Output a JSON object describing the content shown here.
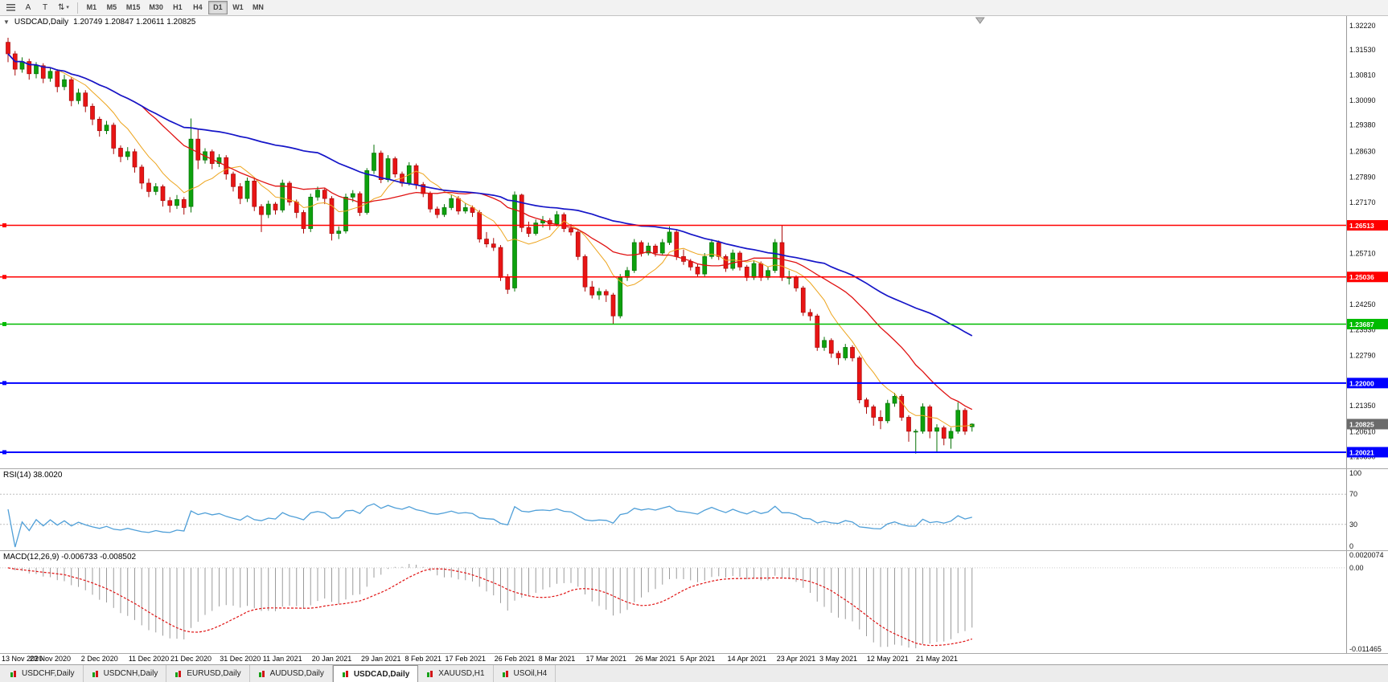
{
  "toolbar": {
    "tool_a": "A",
    "tool_t": "T",
    "icons": {
      "scale": "⇅",
      "caret": "▾",
      "collapse": "▼"
    },
    "timeframes": [
      "M1",
      "M5",
      "M15",
      "M30",
      "H1",
      "H4",
      "D1",
      "W1",
      "MN"
    ],
    "active_timeframe": "D1"
  },
  "main_chart": {
    "title": "USDCAD,Daily",
    "ohlc": "1.20749 1.20847 1.20611 1.20825"
  },
  "rsi_panel": {
    "label": "RSI(14) 38.0020"
  },
  "macd_panel": {
    "label": "MACD(12,26,9) -0.006733 -0.008502"
  },
  "bottom_tabs": [
    {
      "label": "USDCHF,Daily",
      "active": false
    },
    {
      "label": "USDCNH,Daily",
      "active": false
    },
    {
      "label": "EURUSD,Daily",
      "active": false
    },
    {
      "label": "AUDUSD,Daily",
      "active": false
    },
    {
      "label": "USDCAD,Daily",
      "active": true
    },
    {
      "label": "XAUUSD,H1",
      "active": false
    },
    {
      "label": "USOil,H4",
      "active": false
    }
  ],
  "chart_data": {
    "type": "candlestick",
    "symbol": "USDCAD",
    "timeframe": "Daily",
    "ohlc_current": {
      "open": 1.20749,
      "high": 1.20847,
      "low": 1.20611,
      "close": 1.20825
    },
    "current_price": 1.20825,
    "current_price_label": "1.20825",
    "price_axis_range": [
      1.1956,
      1.325
    ],
    "price_axis_ticks": [
      "1.32220",
      "1.31530",
      "1.30810",
      "1.30090",
      "1.29380",
      "1.28630",
      "1.27890",
      "1.27170",
      "1.25710",
      "1.24250",
      "1.23530",
      "1.22790",
      "1.21350",
      "1.20610",
      "1.19890"
    ],
    "horizontal_lines": [
      {
        "price": 1.26513,
        "label": "1.26513",
        "color": "#ff0000",
        "lw": 1.5
      },
      {
        "price": 1.25036,
        "label": "1.25036",
        "color": "#ff0000",
        "lw": 1.5
      },
      {
        "price": 1.23687,
        "label": "1.23687",
        "color": "#00bb00",
        "lw": 1.5
      },
      {
        "price": 1.22,
        "label": "1.22000",
        "color": "#0000ff",
        "lw": 2
      },
      {
        "price": 1.20021,
        "label": "1.20021",
        "color": "#0000ff",
        "lw": 2
      }
    ],
    "moving_averages": [
      {
        "period": 8,
        "color": "#eda41c",
        "width": 1
      },
      {
        "period": 20,
        "color": "#e01212",
        "width": 1.3
      },
      {
        "period": 45,
        "color": "#1515c8",
        "width": 1.7
      }
    ],
    "colors": {
      "up": "#0da10d",
      "up_stroke": "#077307",
      "down": "#e81515",
      "down_stroke": "#a90909",
      "current_badge": "#6b6b6b"
    },
    "date_ticks": [
      {
        "i": 0,
        "label": "13 Nov 2020"
      },
      {
        "i": 6,
        "label": "23 Nov 2020"
      },
      {
        "i": 13,
        "label": "2 Dec 2020"
      },
      {
        "i": 20,
        "label": "11 Dec 2020"
      },
      {
        "i": 26,
        "label": "21 Dec 2020"
      },
      {
        "i": 33,
        "label": "31 Dec 2020"
      },
      {
        "i": 39,
        "label": "11 Jan 2021"
      },
      {
        "i": 46,
        "label": "20 Jan 2021"
      },
      {
        "i": 53,
        "label": "29 Jan 2021"
      },
      {
        "i": 59,
        "label": "8 Feb 2021"
      },
      {
        "i": 65,
        "label": "17 Feb 2021"
      },
      {
        "i": 72,
        "label": "26 Feb 2021"
      },
      {
        "i": 78,
        "label": "8 Mar 2021"
      },
      {
        "i": 85,
        "label": "17 Mar 2021"
      },
      {
        "i": 92,
        "label": "26 Mar 2021"
      },
      {
        "i": 98,
        "label": "5 Apr 2021"
      },
      {
        "i": 105,
        "label": "14 Apr 2021"
      },
      {
        "i": 112,
        "label": "23 Apr 2021"
      },
      {
        "i": 118,
        "label": "3 May 2021"
      },
      {
        "i": 125,
        "label": "12 May 2021"
      },
      {
        "i": 132,
        "label": "21 May 2021"
      }
    ],
    "rsi": {
      "period": 14,
      "value": 38.002,
      "range": [
        0,
        100
      ],
      "levels": [
        70,
        30
      ],
      "axis_ticks": [
        100,
        70,
        30,
        0
      ],
      "color": "#4f9fd8"
    },
    "macd": {
      "fast": 12,
      "slow": 26,
      "signal": 9,
      "main_value": -0.006733,
      "signal_value": -0.008502,
      "range": [
        -0.011465,
        0.0020074
      ],
      "axis_ticks": [
        {
          "v": 0.0020074,
          "label": "0.0020074"
        },
        {
          "v": 0,
          "label": "0.00"
        },
        {
          "v": -0.011465,
          "label": "-0.011465"
        }
      ],
      "histogram_color": "#9b9b9b",
      "signal_color": "#e01212"
    },
    "candles": [
      [
        1.3175,
        1.3188,
        1.3118,
        1.3142
      ],
      [
        1.3142,
        1.315,
        1.308,
        1.3098
      ],
      [
        1.3098,
        1.3132,
        1.3088,
        1.312
      ],
      [
        1.312,
        1.3128,
        1.3068,
        1.3085
      ],
      [
        1.3085,
        1.3118,
        1.3072,
        1.3108
      ],
      [
        1.3108,
        1.3115,
        1.3058,
        1.3072
      ],
      [
        1.3072,
        1.3102,
        1.3062,
        1.3092
      ],
      [
        1.3092,
        1.3098,
        1.3032,
        1.3048
      ],
      [
        1.3048,
        1.3082,
        1.3038,
        1.3068
      ],
      [
        1.3068,
        1.3075,
        1.2992,
        1.3008
      ],
      [
        1.3008,
        1.3042,
        1.2998,
        1.303
      ],
      [
        1.303,
        1.3038,
        1.2975,
        1.2992
      ],
      [
        1.2992,
        1.3,
        1.2938,
        1.2955
      ],
      [
        1.2955,
        1.2962,
        1.2905,
        1.2922
      ],
      [
        1.2922,
        1.295,
        1.2912,
        1.2938
      ],
      [
        1.2938,
        1.2945,
        1.2855,
        1.2872
      ],
      [
        1.2872,
        1.288,
        1.2832,
        1.2848
      ],
      [
        1.2848,
        1.2875,
        1.2838,
        1.2862
      ],
      [
        1.2862,
        1.287,
        1.2802,
        1.2818
      ],
      [
        1.2818,
        1.2825,
        1.2755,
        1.2772
      ],
      [
        1.2772,
        1.2785,
        1.2732,
        1.2748
      ],
      [
        1.2748,
        1.2772,
        1.2738,
        1.2762
      ],
      [
        1.2762,
        1.2768,
        1.2705,
        1.2722
      ],
      [
        1.2722,
        1.2732,
        1.2688,
        1.2708
      ],
      [
        1.2708,
        1.2738,
        1.2698,
        1.2725
      ],
      [
        1.2725,
        1.2732,
        1.2682,
        1.2702
      ],
      [
        1.2705,
        1.2957,
        1.2688,
        1.2898
      ],
      [
        1.2898,
        1.2925,
        1.2812,
        1.2838
      ],
      [
        1.2838,
        1.2872,
        1.2828,
        1.2862
      ],
      [
        1.2862,
        1.2868,
        1.2812,
        1.2828
      ],
      [
        1.2828,
        1.2855,
        1.2818,
        1.2845
      ],
      [
        1.2845,
        1.2852,
        1.2782,
        1.2798
      ],
      [
        1.2798,
        1.2805,
        1.2748,
        1.2762
      ],
      [
        1.2762,
        1.2772,
        1.2712,
        1.2728
      ],
      [
        1.2728,
        1.2788,
        1.2718,
        1.2778
      ],
      [
        1.2778,
        1.2785,
        1.2692,
        1.2705
      ],
      [
        1.2705,
        1.2712,
        1.2632,
        1.2682
      ],
      [
        1.2682,
        1.2722,
        1.2672,
        1.2712
      ],
      [
        1.2712,
        1.2718,
        1.2682,
        1.2695
      ],
      [
        1.2695,
        1.2782,
        1.2688,
        1.2772
      ],
      [
        1.2772,
        1.2778,
        1.2708,
        1.2718
      ],
      [
        1.2718,
        1.2725,
        1.2672,
        1.2688
      ],
      [
        1.2688,
        1.2695,
        1.2628,
        1.2642
      ],
      [
        1.2642,
        1.2742,
        1.2632,
        1.2732
      ],
      [
        1.2732,
        1.2762,
        1.2722,
        1.2752
      ],
      [
        1.2752,
        1.2758,
        1.2712,
        1.2728
      ],
      [
        1.2728,
        1.2735,
        1.2608,
        1.2628
      ],
      [
        1.2628,
        1.2648,
        1.2612,
        1.2635
      ],
      [
        1.2635,
        1.2742,
        1.2628,
        1.2732
      ],
      [
        1.2732,
        1.2752,
        1.2718,
        1.2742
      ],
      [
        1.2742,
        1.2748,
        1.2678,
        1.2688
      ],
      [
        1.2688,
        1.2815,
        1.2682,
        1.2808
      ],
      [
        1.2808,
        1.2882,
        1.2798,
        1.2858
      ],
      [
        1.2858,
        1.2865,
        1.2772,
        1.2782
      ],
      [
        1.2782,
        1.2852,
        1.2775,
        1.2842
      ],
      [
        1.2842,
        1.2848,
        1.2788,
        1.2798
      ],
      [
        1.2798,
        1.2805,
        1.2762,
        1.2772
      ],
      [
        1.2772,
        1.2832,
        1.2765,
        1.2822
      ],
      [
        1.2822,
        1.2828,
        1.2755,
        1.2768
      ],
      [
        1.2768,
        1.2775,
        1.2732,
        1.2742
      ],
      [
        1.2742,
        1.2748,
        1.2688,
        1.2698
      ],
      [
        1.2698,
        1.2705,
        1.2672,
        1.2682
      ],
      [
        1.2682,
        1.2712,
        1.2675,
        1.2702
      ],
      [
        1.2702,
        1.2738,
        1.2695,
        1.2728
      ],
      [
        1.2728,
        1.2735,
        1.2682,
        1.2692
      ],
      [
        1.2692,
        1.2715,
        1.2685,
        1.2702
      ],
      [
        1.2702,
        1.2708,
        1.2675,
        1.2688
      ],
      [
        1.2688,
        1.2695,
        1.2602,
        1.2612
      ],
      [
        1.2612,
        1.2632,
        1.2588,
        1.2598
      ],
      [
        1.2598,
        1.2615,
        1.2578,
        1.2588
      ],
      [
        1.2588,
        1.2595,
        1.2492,
        1.2502
      ],
      [
        1.2502,
        1.2512,
        1.2455,
        1.2468
      ],
      [
        1.2472,
        1.2748,
        1.2462,
        1.2738
      ],
      [
        1.2738,
        1.2742,
        1.2632,
        1.2645
      ],
      [
        1.2645,
        1.2662,
        1.2618,
        1.2628
      ],
      [
        1.2628,
        1.2668,
        1.2622,
        1.2658
      ],
      [
        1.2658,
        1.2678,
        1.2645,
        1.2665
      ],
      [
        1.2665,
        1.2672,
        1.2638,
        1.2655
      ],
      [
        1.2655,
        1.2692,
        1.2648,
        1.2682
      ],
      [
        1.2682,
        1.2688,
        1.2632,
        1.2642
      ],
      [
        1.2642,
        1.2655,
        1.2622,
        1.2632
      ],
      [
        1.2632,
        1.2638,
        1.2552,
        1.2562
      ],
      [
        1.2562,
        1.2568,
        1.2462,
        1.2475
      ],
      [
        1.2475,
        1.2492,
        1.2442,
        1.2452
      ],
      [
        1.2452,
        1.2472,
        1.2438,
        1.2462
      ],
      [
        1.2462,
        1.2468,
        1.2432,
        1.2452
      ],
      [
        1.2452,
        1.2458,
        1.2368,
        1.2392
      ],
      [
        1.2392,
        1.2512,
        1.2385,
        1.2502
      ],
      [
        1.2502,
        1.2532,
        1.2492,
        1.2522
      ],
      [
        1.2522,
        1.2612,
        1.2515,
        1.2602
      ],
      [
        1.2602,
        1.2608,
        1.2562,
        1.2572
      ],
      [
        1.2572,
        1.2602,
        1.2565,
        1.2592
      ],
      [
        1.2592,
        1.2598,
        1.2562,
        1.2572
      ],
      [
        1.2572,
        1.2612,
        1.2565,
        1.2602
      ],
      [
        1.2602,
        1.2648,
        1.2595,
        1.2632
      ],
      [
        1.2632,
        1.2638,
        1.2552,
        1.2562
      ],
      [
        1.2562,
        1.2582,
        1.2538,
        1.2548
      ],
      [
        1.2548,
        1.2555,
        1.2522,
        1.2532
      ],
      [
        1.2532,
        1.2542,
        1.2502,
        1.2512
      ],
      [
        1.2512,
        1.2572,
        1.2505,
        1.2562
      ],
      [
        1.2562,
        1.2612,
        1.2555,
        1.2602
      ],
      [
        1.2602,
        1.2608,
        1.2552,
        1.2562
      ],
      [
        1.2562,
        1.2568,
        1.2518,
        1.2528
      ],
      [
        1.2528,
        1.2582,
        1.2522,
        1.2572
      ],
      [
        1.2572,
        1.2578,
        1.2522,
        1.2532
      ],
      [
        1.2532,
        1.2538,
        1.2492,
        1.2502
      ],
      [
        1.2502,
        1.2552,
        1.2495,
        1.2542
      ],
      [
        1.2542,
        1.2548,
        1.2492,
        1.2502
      ],
      [
        1.2502,
        1.2532,
        1.2495,
        1.2522
      ],
      [
        1.2522,
        1.2612,
        1.2515,
        1.2602
      ],
      [
        1.2602,
        1.2652,
        1.2492,
        1.2502
      ],
      [
        1.2502,
        1.2522,
        1.2482,
        1.2502
      ],
      [
        1.2502,
        1.2508,
        1.2462,
        1.2472
      ],
      [
        1.2472,
        1.2478,
        1.2392,
        1.2402
      ],
      [
        1.2402,
        1.2412,
        1.2378,
        1.2392
      ],
      [
        1.2392,
        1.2398,
        1.2292,
        1.2302
      ],
      [
        1.2302,
        1.2332,
        1.2292,
        1.2322
      ],
      [
        1.2322,
        1.2328,
        1.2272,
        1.2285
      ],
      [
        1.2285,
        1.2292,
        1.2252,
        1.2272
      ],
      [
        1.2272,
        1.2312,
        1.2265,
        1.2302
      ],
      [
        1.2302,
        1.2308,
        1.2262,
        1.2272
      ],
      [
        1.2272,
        1.2278,
        1.2142,
        1.2152
      ],
      [
        1.2152,
        1.2158,
        1.2112,
        1.2132
      ],
      [
        1.2132,
        1.2138,
        1.2078,
        1.2102
      ],
      [
        1.2102,
        1.2122,
        1.2068,
        1.2092
      ],
      [
        1.2092,
        1.2152,
        1.2085,
        1.2142
      ],
      [
        1.2142,
        1.2172,
        1.2132,
        1.2162
      ],
      [
        1.2162,
        1.2168,
        1.2092,
        1.2102
      ],
      [
        1.2102,
        1.2108,
        1.2032,
        1.2062
      ],
      [
        1.2062,
        1.2068,
        1.1998,
        1.2062
      ],
      [
        1.2062,
        1.2142,
        1.2055,
        1.2132
      ],
      [
        1.2132,
        1.2138,
        1.2042,
        1.2062
      ],
      [
        1.2062,
        1.2082,
        1.2002,
        1.2072
      ],
      [
        1.2072,
        1.2078,
        1.2022,
        1.2042
      ],
      [
        1.2042,
        1.2072,
        1.2012,
        1.2062
      ],
      [
        1.2062,
        1.2145,
        1.2055,
        1.2122
      ],
      [
        1.2122,
        1.2128,
        1.2052,
        1.2062
      ],
      [
        1.20749,
        1.20847,
        1.20611,
        1.20825
      ]
    ]
  }
}
